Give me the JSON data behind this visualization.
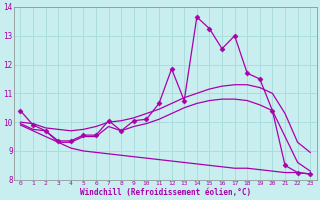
{
  "xlabel": "Windchill (Refroidissement éolien,°C)",
  "ylabel": "",
  "xlim": [
    -0.5,
    23.5
  ],
  "ylim": [
    8,
    14
  ],
  "yticks": [
    8,
    9,
    10,
    11,
    12,
    13,
    14
  ],
  "xticks": [
    0,
    1,
    2,
    3,
    4,
    5,
    6,
    7,
    8,
    9,
    10,
    11,
    12,
    13,
    14,
    15,
    16,
    17,
    18,
    19,
    20,
    21,
    22,
    23
  ],
  "background_color": "#c8eef0",
  "grid_color": "#aadddd",
  "line_color": "#aa00aa",
  "line1_with_markers": {
    "x": [
      0,
      1,
      2,
      3,
      4,
      5,
      6,
      7,
      8,
      9,
      10,
      11,
      12,
      13,
      14,
      15,
      16,
      17,
      18,
      19,
      20,
      21,
      22,
      23
    ],
    "y": [
      10.4,
      9.9,
      9.7,
      9.35,
      9.35,
      9.55,
      9.55,
      10.05,
      9.7,
      10.05,
      10.1,
      10.65,
      11.85,
      10.75,
      13.65,
      13.25,
      12.55,
      13.0,
      11.7,
      11.5,
      10.4,
      8.5,
      8.25,
      8.2
    ]
  },
  "line2_smooth": {
    "x": [
      0,
      1,
      2,
      3,
      4,
      5,
      6,
      7,
      8,
      9,
      10,
      11,
      12,
      13,
      14,
      15,
      16,
      17,
      18,
      19,
      20,
      21,
      22,
      23
    ],
    "y": [
      10.0,
      9.95,
      9.8,
      9.75,
      9.7,
      9.75,
      9.85,
      10.0,
      10.05,
      10.15,
      10.3,
      10.45,
      10.65,
      10.85,
      11.0,
      11.15,
      11.25,
      11.3,
      11.3,
      11.2,
      11.0,
      10.3,
      9.3,
      8.95
    ]
  },
  "line3_lower": {
    "x": [
      0,
      1,
      2,
      3,
      4,
      5,
      6,
      7,
      8,
      9,
      10,
      11,
      12,
      13,
      14,
      15,
      16,
      17,
      18,
      19,
      20,
      21,
      22,
      23
    ],
    "y": [
      9.95,
      9.75,
      9.7,
      9.3,
      9.3,
      9.5,
      9.5,
      9.85,
      9.7,
      9.85,
      9.95,
      10.1,
      10.3,
      10.5,
      10.65,
      10.75,
      10.8,
      10.8,
      10.75,
      10.6,
      10.4,
      9.5,
      8.6,
      8.3
    ]
  },
  "line4_declining": {
    "x": [
      0,
      1,
      2,
      3,
      4,
      5,
      6,
      7,
      8,
      9,
      10,
      11,
      12,
      13,
      14,
      15,
      16,
      17,
      18,
      19,
      20,
      21,
      22,
      23
    ],
    "y": [
      9.9,
      9.7,
      9.5,
      9.3,
      9.1,
      9.0,
      8.95,
      8.9,
      8.85,
      8.8,
      8.75,
      8.7,
      8.65,
      8.6,
      8.55,
      8.5,
      8.45,
      8.4,
      8.4,
      8.35,
      8.3,
      8.25,
      8.25,
      8.2
    ]
  },
  "marker": "D",
  "markersize": 2.5
}
